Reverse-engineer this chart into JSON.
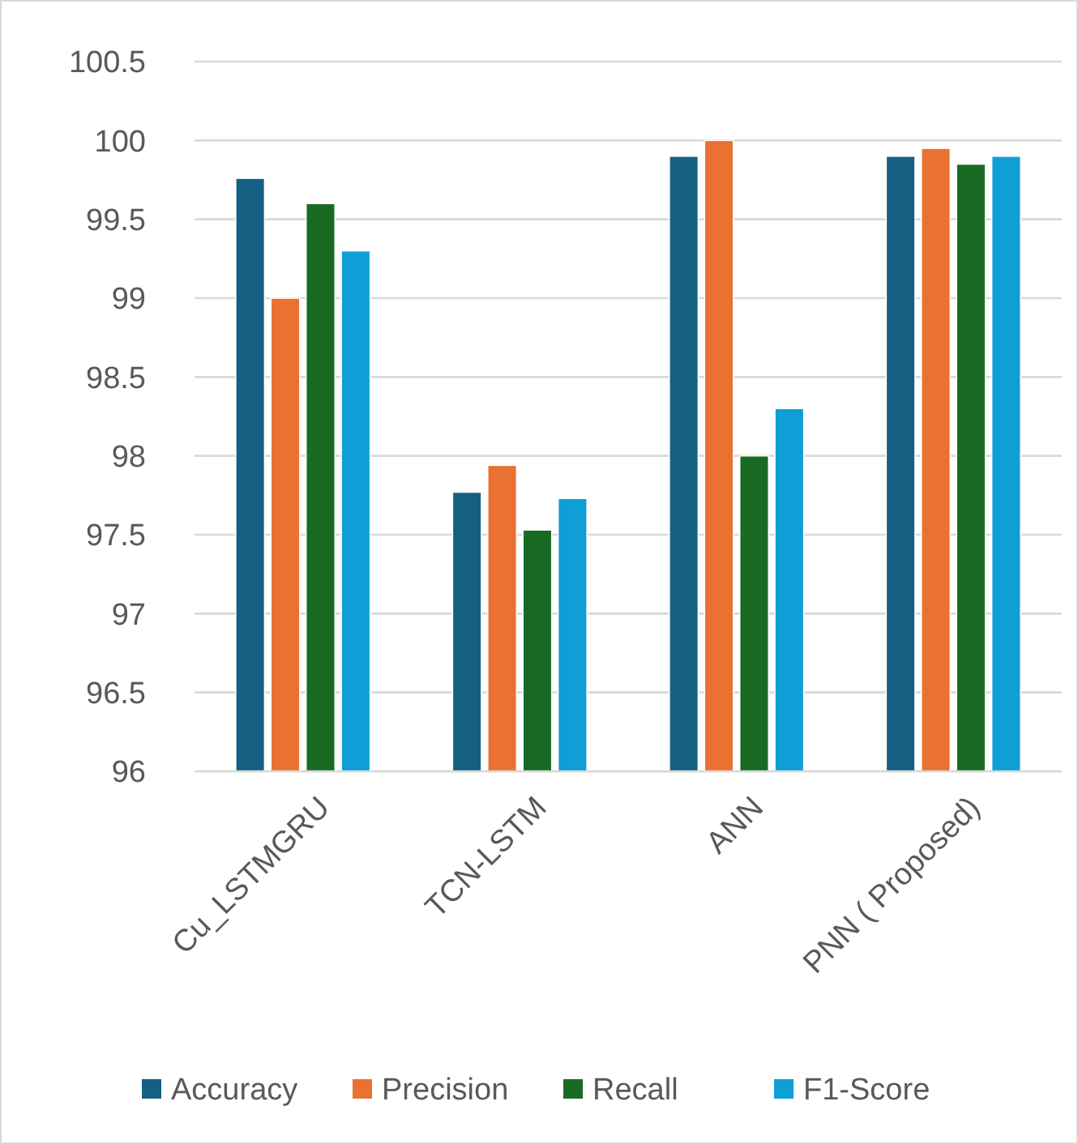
{
  "chart_data": {
    "type": "bar",
    "categories": [
      "Cu_LSTMGRU",
      "TCN-LSTM",
      "ANN",
      "PNN ( Proposed)"
    ],
    "series": [
      {
        "name": "Accuracy",
        "color": "#156082",
        "values": [
          99.76,
          97.77,
          99.9,
          99.9
        ]
      },
      {
        "name": "Precision",
        "color": "#e97132",
        "values": [
          99,
          97.94,
          100,
          99.95
        ]
      },
      {
        "name": "Recall",
        "color": "#196b24",
        "values": [
          99.6,
          97.53,
          98,
          99.85
        ]
      },
      {
        "name": "F1-Score",
        "color": "#0f9ed5",
        "values": [
          99.3,
          97.73,
          98.3,
          99.9
        ]
      }
    ],
    "ylim": [
      96,
      100.5
    ],
    "yticks": [
      96,
      96.5,
      97,
      97.5,
      98,
      98.5,
      99,
      99.5,
      100,
      100.5
    ],
    "grid": "y",
    "legend": "bottom"
  }
}
